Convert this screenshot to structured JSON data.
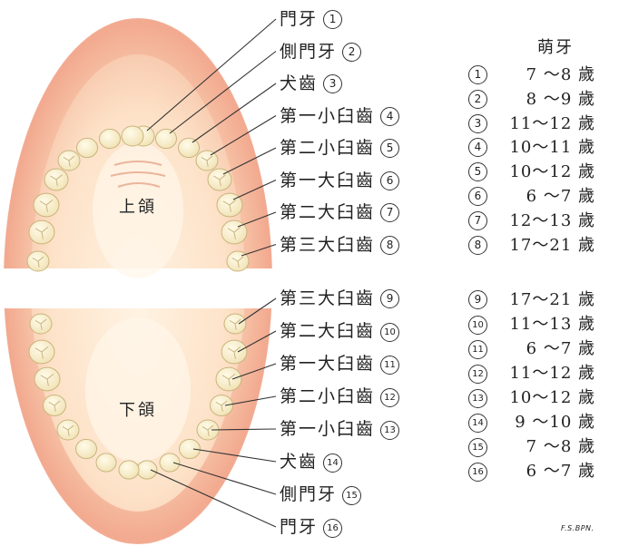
{
  "header": "萌牙",
  "jaws": {
    "upper": "上頜",
    "lower": "下頜"
  },
  "upper_teeth": [
    {
      "label": "門牙",
      "num": "1"
    },
    {
      "label": "側門牙",
      "num": "2"
    },
    {
      "label": "犬齒",
      "num": "3"
    },
    {
      "label": "第一小臼齒",
      "num": "4"
    },
    {
      "label": "第二小臼齒",
      "num": "5"
    },
    {
      "label": "第一大臼齒",
      "num": "6"
    },
    {
      "label": "第二大臼齒",
      "num": "7"
    },
    {
      "label": "第三大臼齒",
      "num": "8"
    }
  ],
  "lower_teeth": [
    {
      "label": "第三大臼齒",
      "num": "9"
    },
    {
      "label": "第二大臼齒",
      "num": "10"
    },
    {
      "label": "第一大臼齒",
      "num": "11"
    },
    {
      "label": "第二小臼齒",
      "num": "12"
    },
    {
      "label": "第一小臼齒",
      "num": "13"
    },
    {
      "label": "犬齒",
      "num": "14"
    },
    {
      "label": "側門牙",
      "num": "15"
    },
    {
      "label": "門牙",
      "num": "16"
    }
  ],
  "eruption_ages": [
    {
      "num": "1",
      "range": "7 ～8 歲"
    },
    {
      "num": "2",
      "range": "8 ～9 歲"
    },
    {
      "num": "3",
      "range": "11～12 歲"
    },
    {
      "num": "4",
      "range": "10～11 歲"
    },
    {
      "num": "5",
      "range": "10～12 歲"
    },
    {
      "num": "6",
      "range": "6 ～7 歲"
    },
    {
      "num": "7",
      "range": "12～13 歲"
    },
    {
      "num": "8",
      "range": "17～21 歲"
    },
    {
      "num": "9",
      "range": "17～21 歲"
    },
    {
      "num": "10",
      "range": "11～13 歲"
    },
    {
      "num": "11",
      "range": "6 ～7 歲"
    },
    {
      "num": "12",
      "range": "11～12 歲"
    },
    {
      "num": "13",
      "range": "10～12 歲"
    },
    {
      "num": "14",
      "range": "9 ～10 歲"
    },
    {
      "num": "15",
      "range": "7 ～8 歲"
    },
    {
      "num": "16",
      "range": "6 ～7 歲"
    }
  ],
  "signature": "F.S.BPN."
}
